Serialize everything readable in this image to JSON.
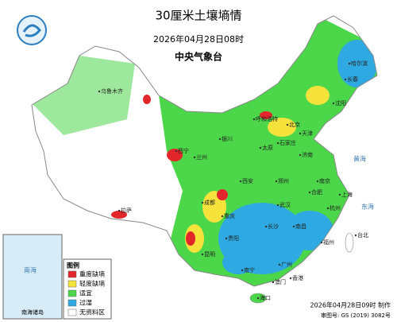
{
  "header": {
    "title": "30厘米土壤墒情",
    "datetime": "2026年04月28日08时",
    "agency": "中央气象台"
  },
  "legend": {
    "title": "图例",
    "items": [
      {
        "label": "重度缺墒",
        "color": "#e3262b"
      },
      {
        "label": "轻度缺墒",
        "color": "#f5e23a"
      },
      {
        "label": "适宜",
        "color": "#4cd64a"
      },
      {
        "label": "过湿",
        "color": "#2fa9e1"
      },
      {
        "label": "无资料区",
        "color": "#ffffff"
      }
    ]
  },
  "places": [
    "北京",
    "天津",
    "石家庄",
    "太原",
    "呼和浩特",
    "沈阳",
    "长春",
    "哈尔滨",
    "济南",
    "郑州",
    "西安",
    "兰州",
    "西宁",
    "银川",
    "乌鲁木齐",
    "拉萨",
    "成都",
    "重庆",
    "武汉",
    "南京",
    "合肥",
    "上海",
    "杭州",
    "长沙",
    "南昌",
    "福州",
    "贵阳",
    "昆明",
    "南宁",
    "广州",
    "海口",
    "台北",
    "香港",
    "澳门"
  ],
  "seas": [
    "黄海",
    "东海",
    "南海"
  ],
  "inset": {
    "label": "南海诸岛"
  },
  "footer": {
    "made": "2026年04月28日09时 制作",
    "review": "审图号: GS (2019) 3082号"
  }
}
